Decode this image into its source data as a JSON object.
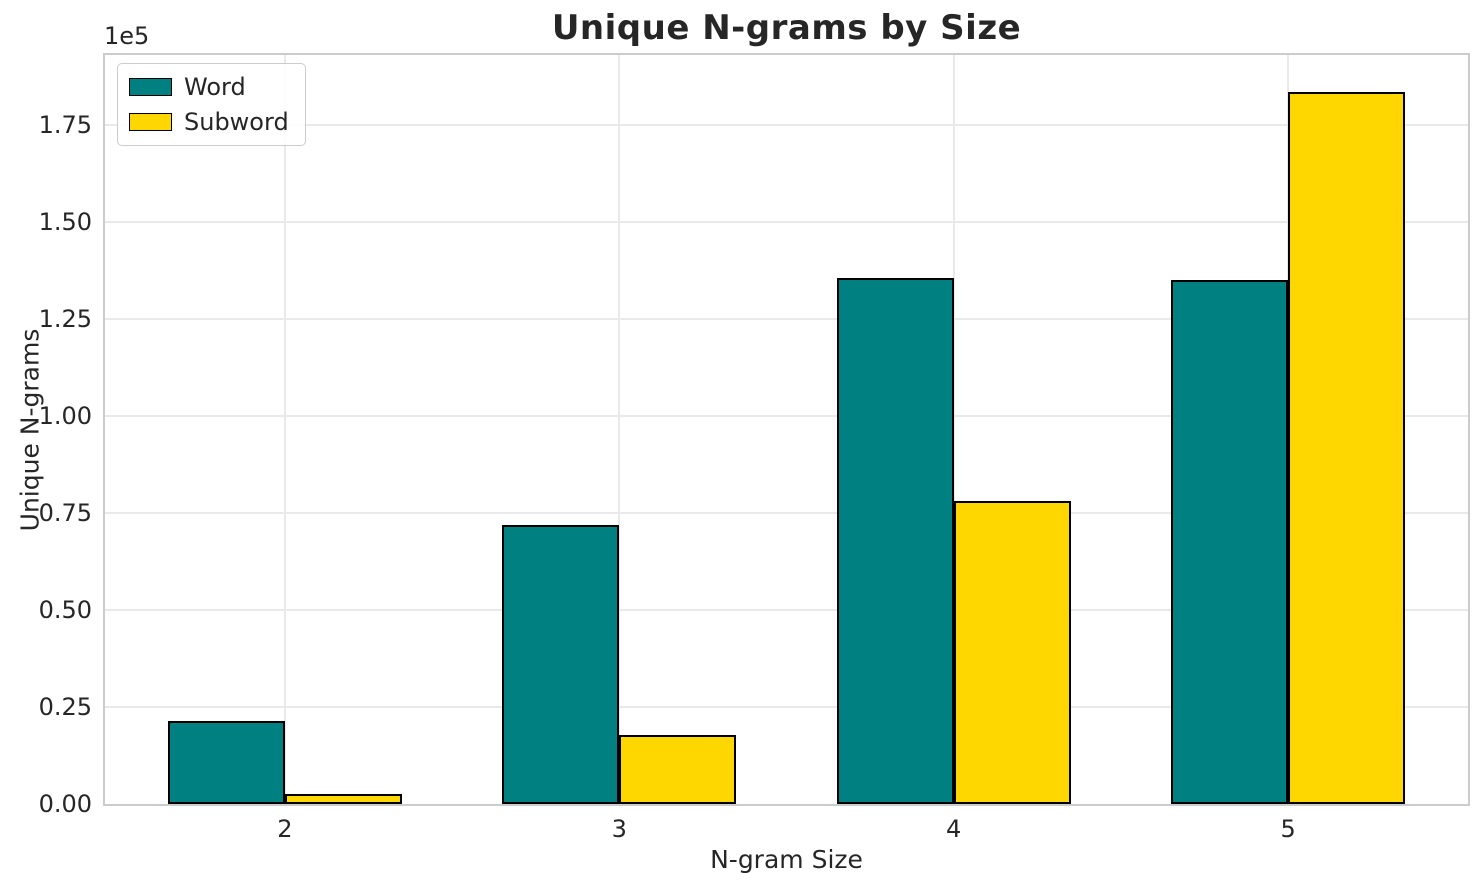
{
  "chart": {
    "title": "Unique N-grams by Size",
    "xlabel": "N-gram Size",
    "ylabel": "Unique N-grams",
    "y_offset_label": "1e5"
  },
  "chart_data": {
    "type": "bar",
    "title": "Unique N-grams by Size",
    "xlabel": "N-gram Size",
    "ylabel": "Unique N-grams",
    "y_scale_offset": "1e5",
    "categories": [
      "2",
      "3",
      "4",
      "5"
    ],
    "series": [
      {
        "name": "Word",
        "color": "#008080",
        "values": [
          21500,
          72000,
          135600,
          135100
        ]
      },
      {
        "name": "Subword",
        "color": "#FFD700",
        "values": [
          2500,
          17900,
          78100,
          183500
        ]
      }
    ],
    "bar_width": 0.35,
    "bar_edge_color": "#000000",
    "xlim": [
      -0.538,
      3.538
    ],
    "ylim": [
      0,
      193000
    ],
    "y_ticks": [
      {
        "value": 0,
        "label": "0.00"
      },
      {
        "value": 25000,
        "label": "0.25"
      },
      {
        "value": 50000,
        "label": "0.50"
      },
      {
        "value": 75000,
        "label": "0.75"
      },
      {
        "value": 100000,
        "label": "1.00"
      },
      {
        "value": 125000,
        "label": "1.25"
      },
      {
        "value": 150000,
        "label": "1.50"
      },
      {
        "value": 175000,
        "label": "1.75"
      }
    ],
    "grid": true,
    "legend_position": "upper left",
    "colors": {
      "grid": "#e9e9e9",
      "spine": "#cccccc",
      "text": "#262626",
      "background": "#ffffff"
    }
  }
}
